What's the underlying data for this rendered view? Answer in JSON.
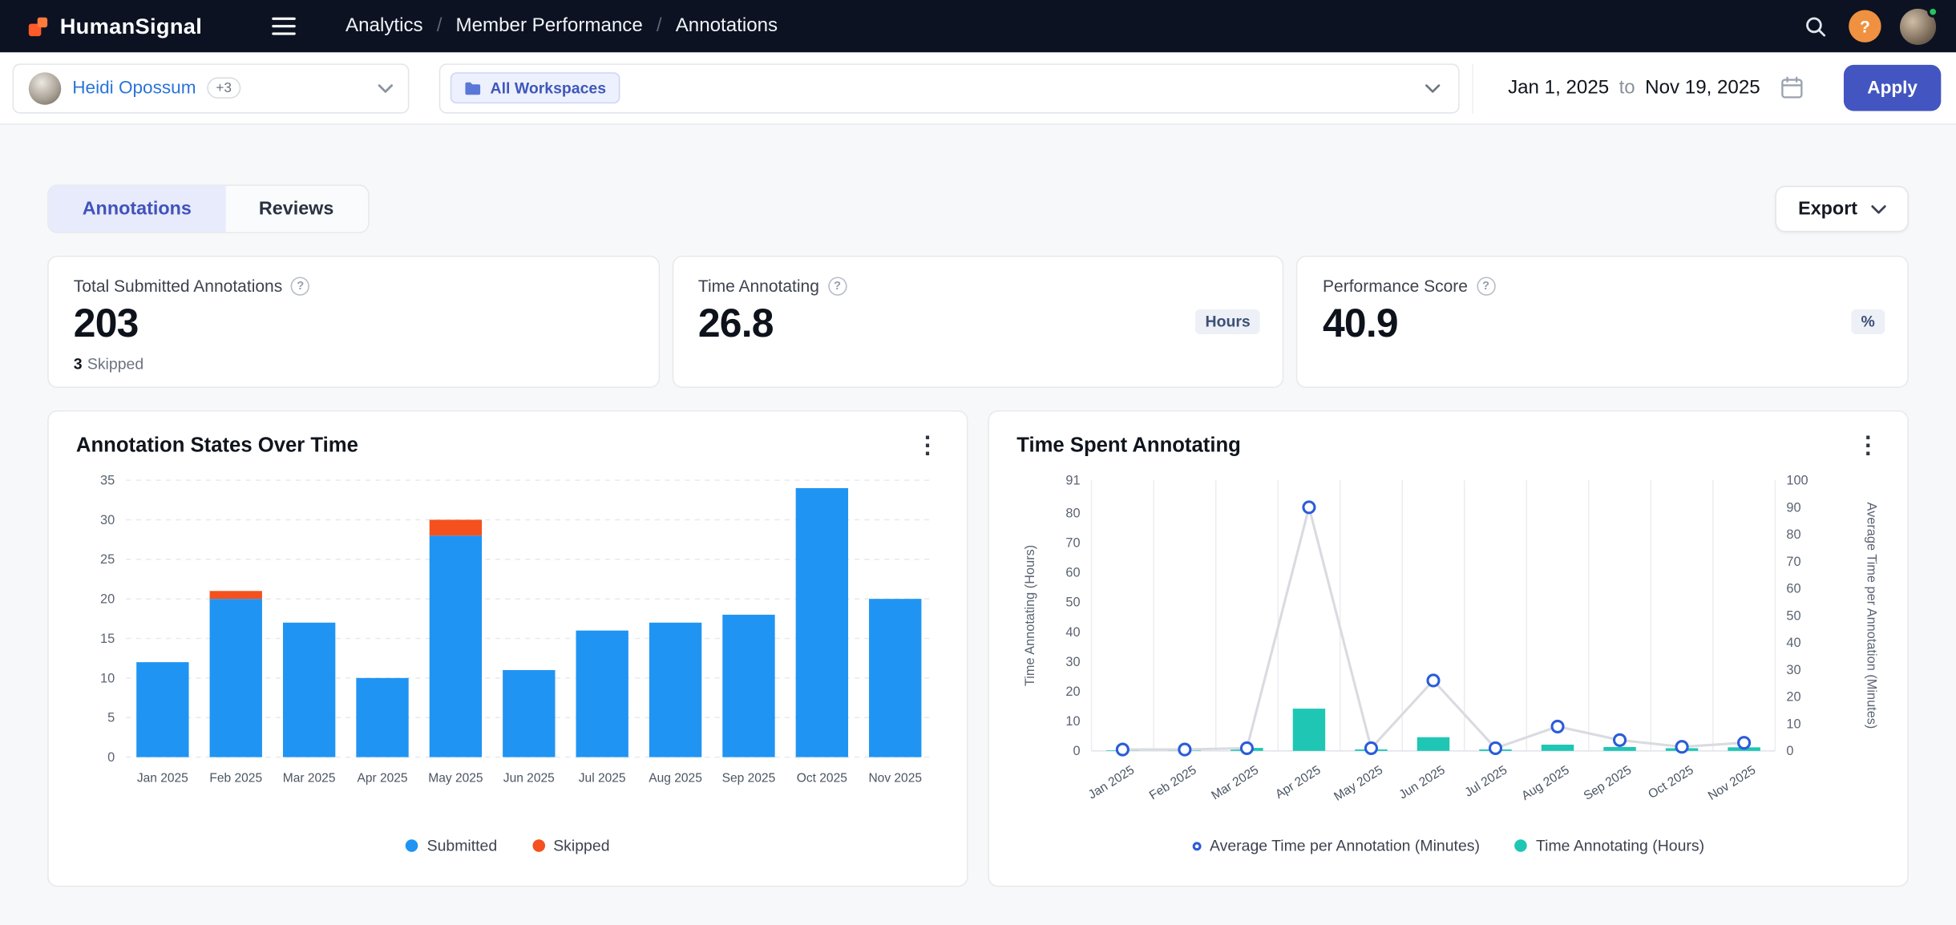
{
  "topbar": {
    "brand": "HumanSignal",
    "separator": "/",
    "breadcrumb": [
      "Analytics",
      "Member Performance",
      "Annotations"
    ]
  },
  "glyphs": {
    "help": "?",
    "info": "?",
    "kebab": "⋮"
  },
  "filters": {
    "member": {
      "name": "Heidi Opossum",
      "extra_badge": "+3"
    },
    "workspace_chip": "All Workspaces",
    "date_from": "Jan 1, 2025",
    "date_to_word": "to",
    "date_to": "Nov 19, 2025",
    "apply_label": "Apply"
  },
  "tabs": {
    "annotations": "Annotations",
    "reviews": "Reviews"
  },
  "export_label": "Export",
  "stats": [
    {
      "label": "Total Submitted Annotations",
      "value": "203",
      "sub_value": "3",
      "sub_label": "Skipped"
    },
    {
      "label": "Time Annotating",
      "value": "26.8",
      "badge": "Hours"
    },
    {
      "label": "Performance Score",
      "value": "40.9",
      "badge": "%"
    }
  ],
  "colors": {
    "submitted_blue": "#2094f3",
    "skipped_orange": "#f4511e",
    "hours_teal": "#1fc6b4",
    "marker_blue": "#2a5cd9",
    "accent_indigo": "#4355c0",
    "topbar_bg": "#0c1222"
  },
  "chart_data": [
    {
      "type": "bar",
      "title": "Annotation States Over Time",
      "categories": [
        "Jan 2025",
        "Feb 2025",
        "Mar 2025",
        "Apr 2025",
        "May 2025",
        "Jun 2025",
        "Jul 2025",
        "Aug 2025",
        "Sep 2025",
        "Oct 2025",
        "Nov 2025"
      ],
      "series": [
        {
          "name": "Submitted",
          "color": "#2094f3",
          "values": [
            12,
            20,
            17,
            10,
            28,
            11,
            16,
            17,
            18,
            34,
            20
          ]
        },
        {
          "name": "Skipped",
          "color": "#f4511e",
          "values": [
            0,
            1,
            0,
            0,
            2,
            0,
            0,
            0,
            0,
            0,
            0
          ]
        }
      ],
      "stacked": true,
      "ylim": [
        0,
        35
      ],
      "yticks": [
        0,
        5,
        10,
        15,
        20,
        25,
        30,
        35
      ],
      "grid": "horizontal-dashed",
      "legend_position": "bottom"
    },
    {
      "type": "bar+line",
      "title": "Time Spent Annotating",
      "categories": [
        "Jan 2025",
        "Feb 2025",
        "Mar 2025",
        "Apr 2025",
        "May 2025",
        "Jun 2025",
        "Jul 2025",
        "Aug 2025",
        "Sep 2025",
        "Oct 2025",
        "Nov 2025"
      ],
      "left_axis": {
        "label": "Time Annotating (Hours)",
        "lim": [
          0,
          91
        ],
        "ticks": [
          0,
          10,
          20,
          30,
          40,
          50,
          60,
          70,
          80,
          91
        ]
      },
      "right_axis": {
        "label": "Average Time per Annotation (Minutes)",
        "lim": [
          0,
          100
        ],
        "ticks": [
          0,
          10,
          20,
          30,
          40,
          50,
          60,
          70,
          80,
          90,
          100
        ]
      },
      "series": [
        {
          "name": "Average Time per Annotation (Minutes)",
          "type": "line",
          "axis": "right",
          "color": "#2a5cd9",
          "line_color": "#d9dbe0",
          "values": [
            0.5,
            0.5,
            1,
            90,
            1,
            26,
            1,
            9,
            4,
            1.5,
            3
          ]
        },
        {
          "name": "Time Annotating (Hours)",
          "type": "bar",
          "axis": "left",
          "color": "#1fc6b4",
          "values": [
            0.2,
            0.3,
            1.0,
            14.2,
            0.5,
            4.6,
            0.5,
            2.1,
            1.3,
            0.9,
            1.2
          ]
        }
      ],
      "grid": "vertical",
      "legend_position": "bottom"
    }
  ]
}
